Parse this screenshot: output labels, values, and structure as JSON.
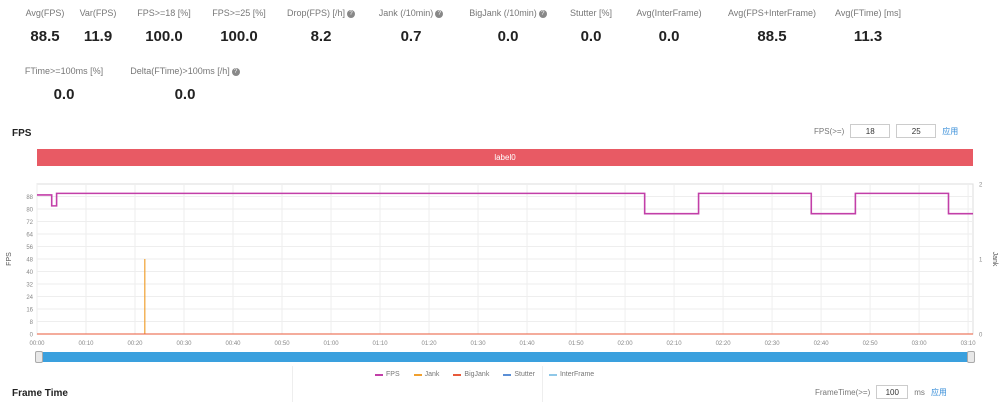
{
  "stats_row1": [
    {
      "label": "Avg(FPS)",
      "value": "88.5",
      "info": false
    },
    {
      "label": "Var(FPS)",
      "value": "11.9",
      "info": false
    },
    {
      "label": "FPS>=18 [%]",
      "value": "100.0",
      "info": false
    },
    {
      "label": "FPS>=25 [%]",
      "value": "100.0",
      "info": false
    },
    {
      "label": "Drop(FPS) [/h]",
      "value": "8.2",
      "info": true
    },
    {
      "label": "Jank (/10min)",
      "value": "0.7",
      "info": true
    },
    {
      "label": "BigJank (/10min)",
      "value": "0.0",
      "info": true
    },
    {
      "label": "Stutter [%]",
      "value": "0.0",
      "info": false
    },
    {
      "label": "Avg(InterFrame)",
      "value": "0.0",
      "info": false
    },
    {
      "label": "Avg(FPS+InterFrame)",
      "value": "88.5",
      "info": false
    },
    {
      "label": "Avg(FTime) [ms]",
      "value": "11.3",
      "info": false
    }
  ],
  "stats_row2": [
    {
      "label": "FTime>=100ms [%]",
      "value": "0.0",
      "info": false
    },
    {
      "label": "Delta(FTime)>100ms [/h]",
      "value": "0.0",
      "info": true
    }
  ],
  "fps_section": {
    "title": "FPS",
    "threshold_label": "FPS(>=)",
    "threshold_values": [
      "18",
      "25"
    ],
    "apply_label": "应用",
    "label_bar": "label0"
  },
  "chart_data": {
    "type": "line",
    "x_tick_labels": [
      "00:00",
      "00:10",
      "00:20",
      "00:30",
      "00:40",
      "00:50",
      "01:00",
      "01:10",
      "01:20",
      "01:30",
      "01:40",
      "01:50",
      "02:00",
      "02:10",
      "02:20",
      "02:30",
      "02:40",
      "02:50",
      "03:00",
      "03:10"
    ],
    "ylabel": "FPS",
    "y_tick_labels": [
      "0",
      "8",
      "16",
      "24",
      "32",
      "40",
      "48",
      "56",
      "64",
      "72",
      "80",
      "88"
    ],
    "ylim": [
      0,
      96
    ],
    "y2label": "Jank",
    "y2_tick_labels": [
      "0",
      "1",
      "2"
    ],
    "y2lim": [
      0,
      2
    ],
    "grid": true,
    "series": [
      {
        "name": "FPS",
        "color": "#c23fa8",
        "segments": [
          {
            "t_start": 0,
            "t_end": 3,
            "fps": 89
          },
          {
            "t_start": 3,
            "t_end": 4,
            "fps": 82
          },
          {
            "t_start": 4,
            "t_end": 124,
            "fps": 90
          },
          {
            "t_start": 124,
            "t_end": 135,
            "fps": 77
          },
          {
            "t_start": 135,
            "t_end": 158,
            "fps": 90
          },
          {
            "t_start": 158,
            "t_end": 167,
            "fps": 77
          },
          {
            "t_start": 167,
            "t_end": 186,
            "fps": 90
          },
          {
            "t_start": 186,
            "t_end": 191,
            "fps": 77
          }
        ]
      },
      {
        "name": "Jank",
        "color": "#f0a030",
        "spikes": [
          {
            "t": 22,
            "value": 1.0
          }
        ]
      },
      {
        "name": "BigJank",
        "color": "#e85a3a",
        "spikes": []
      },
      {
        "name": "Stutter",
        "color": "#5b8fd6",
        "spikes": []
      },
      {
        "name": "InterFrame",
        "color": "#8fc8e8",
        "spikes": []
      }
    ]
  },
  "frame_section": {
    "title": "Frame Time",
    "threshold_label": "FrameTime(>=)",
    "threshold_value": "100",
    "unit": "ms",
    "apply_label": "应用"
  }
}
